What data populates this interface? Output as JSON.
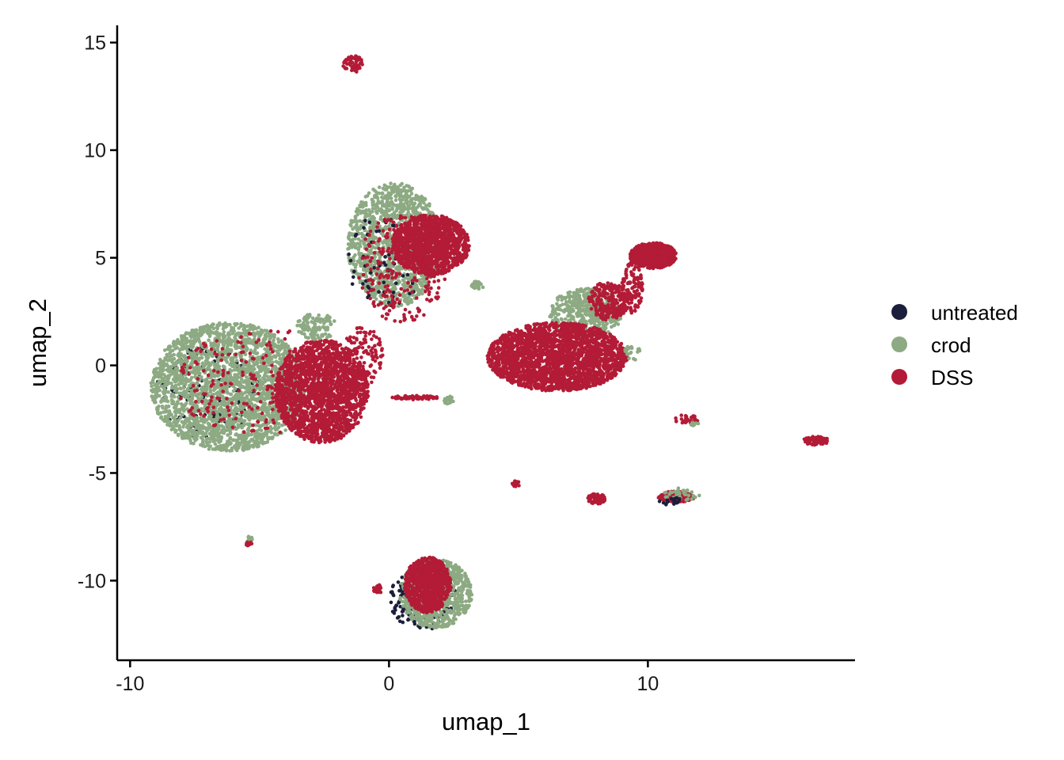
{
  "chart_data": {
    "type": "scatter",
    "xlabel": "umap_1",
    "ylabel": "umap_2",
    "xlim": [
      -10.5,
      18
    ],
    "ylim": [
      -13.7,
      15.8
    ],
    "x_ticks": [
      {
        "value": -10,
        "label": "-10"
      },
      {
        "value": 0,
        "label": "0"
      },
      {
        "value": 10,
        "label": "10"
      }
    ],
    "y_ticks": [
      {
        "value": 15,
        "label": "15"
      },
      {
        "value": 10,
        "label": "10"
      },
      {
        "value": 5,
        "label": "5"
      },
      {
        "value": 0,
        "label": "0"
      },
      {
        "value": -5,
        "label": "-5"
      },
      {
        "value": -10,
        "label": "-10"
      }
    ],
    "grid": false,
    "legend_position": "right",
    "series": [
      {
        "name": "untreated",
        "color": "#1b1f3b"
      },
      {
        "name": "crod",
        "color": "#8daa83"
      },
      {
        "name": "DSS",
        "color": "#b31b36"
      }
    ],
    "clusters": [
      {
        "series": "untreated",
        "cx": -7.0,
        "cy": -1.2,
        "rx": 2.0,
        "ry": 2.2,
        "n": 140
      },
      {
        "series": "crod",
        "cx": -6.2,
        "cy": -1.0,
        "rx": 3.0,
        "ry": 3.0,
        "n": 2600
      },
      {
        "series": "DSS",
        "cx": -2.6,
        "cy": -1.2,
        "rx": 1.8,
        "ry": 2.4,
        "n": 1900
      },
      {
        "series": "DSS",
        "cx": -5.0,
        "cy": -0.8,
        "rx": 3.2,
        "ry": 2.6,
        "n": 220
      },
      {
        "series": "crod",
        "cx": -2.8,
        "cy": 1.8,
        "rx": 0.8,
        "ry": 0.6,
        "n": 120
      },
      {
        "series": "DSS",
        "cx": -1.0,
        "cy": 0.4,
        "rx": 0.8,
        "ry": 1.4,
        "n": 120
      },
      {
        "series": "crod",
        "cx": 0.2,
        "cy": 5.6,
        "rx": 1.8,
        "ry": 2.9,
        "n": 1300
      },
      {
        "series": "untreated",
        "cx": -0.2,
        "cy": 4.8,
        "rx": 1.5,
        "ry": 2.2,
        "n": 70
      },
      {
        "series": "DSS",
        "cx": 1.6,
        "cy": 5.6,
        "rx": 1.5,
        "ry": 1.4,
        "n": 1300
      },
      {
        "series": "DSS",
        "cx": 0.5,
        "cy": 4.5,
        "rx": 1.7,
        "ry": 2.5,
        "n": 260
      },
      {
        "series": "crod",
        "cx": 3.4,
        "cy": 3.7,
        "rx": 0.3,
        "ry": 0.2,
        "n": 25
      },
      {
        "series": "DSS",
        "cx": -1.4,
        "cy": 14.0,
        "rx": 0.4,
        "ry": 0.4,
        "n": 60
      },
      {
        "series": "crod",
        "cx": 7.6,
        "cy": 2.4,
        "rx": 1.4,
        "ry": 1.2,
        "n": 500
      },
      {
        "series": "DSS",
        "cx": 6.5,
        "cy": 0.4,
        "rx": 2.7,
        "ry": 1.6,
        "n": 2300
      },
      {
        "series": "DSS",
        "cx": 8.5,
        "cy": 3.0,
        "rx": 0.8,
        "ry": 0.9,
        "n": 250
      },
      {
        "series": "DSS",
        "cx": 10.2,
        "cy": 5.1,
        "rx": 0.9,
        "ry": 0.6,
        "n": 550
      },
      {
        "series": "DSS",
        "cx": 9.4,
        "cy": 3.6,
        "rx": 0.4,
        "ry": 1.2,
        "n": 120
      },
      {
        "series": "crod",
        "cx": 9.4,
        "cy": 0.6,
        "rx": 0.3,
        "ry": 0.4,
        "n": 20
      },
      {
        "series": "DSS",
        "cx": 1.0,
        "cy": -1.5,
        "rx": 0.9,
        "ry": 0.1,
        "n": 70
      },
      {
        "series": "crod",
        "cx": 2.3,
        "cy": -1.6,
        "rx": 0.2,
        "ry": 0.2,
        "n": 20
      },
      {
        "series": "DSS",
        "cx": 11.5,
        "cy": -2.5,
        "rx": 0.5,
        "ry": 0.2,
        "n": 35
      },
      {
        "series": "crod",
        "cx": 11.8,
        "cy": -2.7,
        "rx": 0.2,
        "ry": 0.1,
        "n": 12
      },
      {
        "series": "DSS",
        "cx": 16.5,
        "cy": -3.5,
        "rx": 0.5,
        "ry": 0.2,
        "n": 60
      },
      {
        "series": "DSS",
        "cx": 4.9,
        "cy": -5.5,
        "rx": 0.15,
        "ry": 0.15,
        "n": 20
      },
      {
        "series": "DSS",
        "cx": 8.0,
        "cy": -6.2,
        "rx": 0.35,
        "ry": 0.25,
        "n": 80
      },
      {
        "series": "DSS",
        "cx": 11.1,
        "cy": -6.1,
        "rx": 0.7,
        "ry": 0.25,
        "n": 180
      },
      {
        "series": "crod",
        "cx": 11.3,
        "cy": -6.0,
        "rx": 0.7,
        "ry": 0.3,
        "n": 40
      },
      {
        "series": "untreated",
        "cx": 10.9,
        "cy": -6.3,
        "rx": 0.5,
        "ry": 0.2,
        "n": 20
      },
      {
        "series": "crod",
        "cx": -5.4,
        "cy": -8.1,
        "rx": 0.15,
        "ry": 0.2,
        "n": 10
      },
      {
        "series": "DSS",
        "cx": -5.4,
        "cy": -8.3,
        "rx": 0.12,
        "ry": 0.1,
        "n": 10
      },
      {
        "series": "untreated",
        "cx": 1.3,
        "cy": -10.8,
        "rx": 1.3,
        "ry": 1.5,
        "n": 200
      },
      {
        "series": "crod",
        "cx": 1.8,
        "cy": -10.6,
        "rx": 1.4,
        "ry": 1.6,
        "n": 800
      },
      {
        "series": "DSS",
        "cx": 1.5,
        "cy": -10.2,
        "rx": 0.9,
        "ry": 1.3,
        "n": 800
      },
      {
        "series": "DSS",
        "cx": -0.4,
        "cy": -10.4,
        "rx": 0.2,
        "ry": 0.2,
        "n": 20
      }
    ]
  }
}
